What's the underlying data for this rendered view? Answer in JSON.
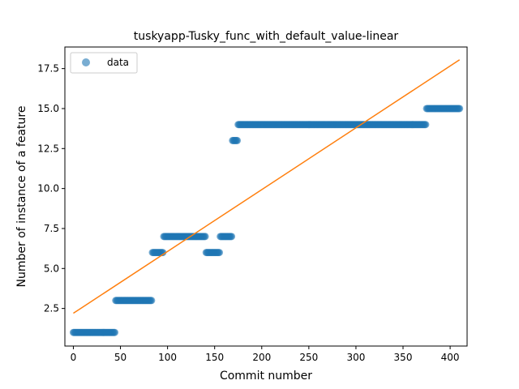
{
  "chart_data": {
    "type": "scatter",
    "title": "tuskyapp-Tusky_func_with_default_value-linear",
    "xlabel": "Commit number",
    "ylabel": "Number of instance of a feature",
    "xlim": [
      -9,
      418
    ],
    "ylim": [
      0.15,
      18.85
    ],
    "xticks": [
      0,
      50,
      100,
      150,
      200,
      250,
      300,
      350,
      400
    ],
    "yticks": [
      2.5,
      5.0,
      7.5,
      10.0,
      12.5,
      15.0,
      17.5
    ],
    "xtick_labels": [
      "0",
      "50",
      "100",
      "150",
      "200",
      "250",
      "300",
      "350",
      "400"
    ],
    "ytick_labels": [
      "2.5",
      "5.0",
      "7.5",
      "10.0",
      "12.5",
      "15.0",
      "17.5"
    ],
    "grid": false,
    "legend": {
      "placement": "top-left",
      "entries": [
        "data"
      ]
    },
    "colors": {
      "data": "#1f77b4",
      "fit": "#ff7f0e"
    },
    "series": [
      {
        "name": "data",
        "kind": "points",
        "segments": [
          {
            "x_start": 0,
            "x_end": 44,
            "y": 1
          },
          {
            "x_start": 45,
            "x_end": 83,
            "y": 3
          },
          {
            "x_start": 84,
            "x_end": 95,
            "y": 6
          },
          {
            "x_start": 96,
            "x_end": 140,
            "y": 7
          },
          {
            "x_start": 141,
            "x_end": 155,
            "y": 6
          },
          {
            "x_start": 156,
            "x_end": 168,
            "y": 7
          },
          {
            "x_start": 169,
            "x_end": 174,
            "y": 13
          },
          {
            "x_start": 175,
            "x_end": 374,
            "y": 14
          },
          {
            "x_start": 375,
            "x_end": 410,
            "y": 15
          }
        ]
      },
      {
        "kind": "line",
        "x": [
          0,
          410
        ],
        "y": [
          2.2,
          18.05
        ]
      }
    ]
  }
}
